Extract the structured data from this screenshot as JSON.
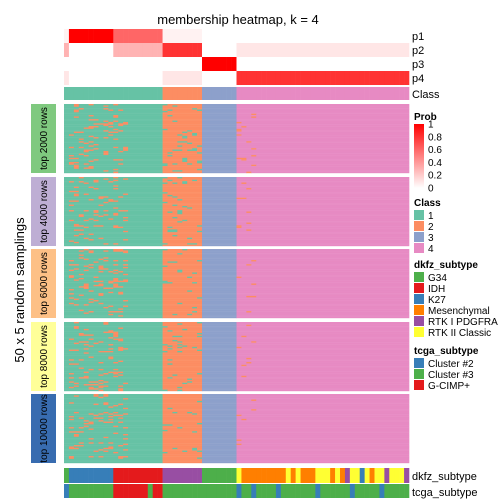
{
  "chart_data": {
    "type": "heatmap",
    "title": "membership heatmap, k = 4",
    "ylabel": "50 x 5 random samplings",
    "num_samples": 70,
    "class_boundaries": [
      0,
      7,
      14,
      21,
      28
    ],
    "membership_rows": [
      "p1",
      "p2",
      "p3",
      "p4"
    ],
    "membership_values": [
      [
        0.05,
        1,
        1,
        1,
        1,
        1,
        1,
        1,
        1,
        1,
        0.6,
        0.6,
        0.6,
        0.6,
        0.6,
        0.6,
        0.6,
        0.6,
        0.6,
        0.6,
        0.05,
        0.05,
        0.05,
        0.05,
        0.05,
        0.05,
        0.05,
        0.05,
        0,
        0,
        0,
        0,
        0,
        0,
        0,
        0,
        0,
        0,
        0,
        0,
        0,
        0,
        0,
        0,
        0,
        0,
        0,
        0,
        0,
        0,
        0,
        0,
        0,
        0,
        0,
        0,
        0,
        0,
        0,
        0,
        0,
        0,
        0,
        0,
        0,
        0,
        0,
        0,
        0,
        0
      ],
      [
        0.3,
        0,
        0,
        0,
        0,
        0,
        0,
        0,
        0,
        0,
        0.3,
        0.3,
        0.3,
        0.3,
        0.3,
        0.3,
        0.3,
        0.3,
        0.3,
        0.3,
        0.8,
        0.8,
        0.8,
        0.8,
        0.8,
        0.8,
        0.8,
        0.8,
        0,
        0,
        0,
        0,
        0,
        0,
        0,
        0.1,
        0.1,
        0.1,
        0.1,
        0.1,
        0.1,
        0.1,
        0.1,
        0.1,
        0.1,
        0.1,
        0.1,
        0.1,
        0.1,
        0.1,
        0.1,
        0.1,
        0.1,
        0.1,
        0.1,
        0.1,
        0.1,
        0.1,
        0.1,
        0.1,
        0.1,
        0.1,
        0.1,
        0.1,
        0.1,
        0.1,
        0.1,
        0.1,
        0.1,
        0.1
      ],
      [
        0,
        0,
        0,
        0,
        0,
        0,
        0,
        0,
        0,
        0,
        0,
        0,
        0,
        0,
        0,
        0,
        0,
        0,
        0,
        0,
        0,
        0,
        0,
        0,
        0,
        0,
        0,
        0,
        1,
        1,
        1,
        1,
        1,
        1,
        1,
        0,
        0,
        0,
        0,
        0,
        0,
        0,
        0,
        0,
        0,
        0,
        0,
        0,
        0,
        0,
        0,
        0,
        0,
        0,
        0,
        0,
        0,
        0,
        0,
        0,
        0,
        0,
        0,
        0,
        0,
        0,
        0,
        0,
        0,
        0
      ],
      [
        0.1,
        0,
        0,
        0,
        0,
        0,
        0,
        0,
        0,
        0,
        0,
        0,
        0,
        0,
        0,
        0,
        0,
        0,
        0,
        0,
        0.1,
        0.1,
        0.1,
        0.1,
        0.1,
        0.1,
        0.1,
        0.1,
        0,
        0,
        0,
        0,
        0,
        0,
        0,
        0.8,
        0.8,
        0.8,
        0.8,
        0.8,
        0.8,
        0.8,
        0.8,
        0.8,
        0.8,
        0.8,
        0.8,
        0.8,
        0.8,
        0.8,
        0.8,
        0.8,
        0.8,
        0.8,
        0.8,
        0.8,
        0.8,
        0.8,
        0.8,
        0.8,
        0.8,
        0.8,
        0.8,
        0.8,
        0.8,
        0.8,
        0.8,
        0.8,
        0.8,
        0.8
      ]
    ],
    "class_label": "Class",
    "sample_class": [
      1,
      1,
      1,
      1,
      1,
      1,
      1,
      1,
      1,
      1,
      1,
      1,
      1,
      1,
      1,
      1,
      1,
      1,
      1,
      1,
      2,
      2,
      2,
      2,
      2,
      2,
      2,
      2,
      3,
      3,
      3,
      3,
      3,
      3,
      3,
      4,
      4,
      4,
      4,
      4,
      4,
      4,
      4,
      4,
      4,
      4,
      4,
      4,
      4,
      4,
      4,
      4,
      4,
      4,
      4,
      4,
      4,
      4,
      4,
      4,
      4,
      4,
      4,
      4,
      4,
      4,
      4,
      4,
      4,
      4
    ],
    "row_groups": [
      {
        "label": "top 2000 rows",
        "color": "#7fc97f"
      },
      {
        "label": "top 4000 rows",
        "color": "#beaed4"
      },
      {
        "label": "top 6000 rows",
        "color": "#fdc086"
      },
      {
        "label": "top 8000 rows",
        "color": "#ffff99"
      },
      {
        "label": "top 10000 rows",
        "color": "#386cb0"
      }
    ],
    "prob_legend": {
      "title": "Prob",
      "ticks": [
        "1",
        "0.8",
        "0.6",
        "0.4",
        "0.2",
        "0"
      ]
    },
    "class_legend": {
      "title": "Class",
      "items": [
        {
          "label": "1",
          "color": "#66c2a5"
        },
        {
          "label": "2",
          "color": "#fc8d62"
        },
        {
          "label": "3",
          "color": "#8da0cb"
        },
        {
          "label": "4",
          "color": "#e78ac3"
        }
      ]
    },
    "dkfz_legend": {
      "title": "dkfz_subtype",
      "items": [
        {
          "label": "G34",
          "color": "#4daf4a"
        },
        {
          "label": "IDH",
          "color": "#e41a1c"
        },
        {
          "label": "K27",
          "color": "#377eb8"
        },
        {
          "label": "Mesenchymal",
          "color": "#ff7f00"
        },
        {
          "label": "RTK I PDGFRA",
          "color": "#984ea3"
        },
        {
          "label": "RTK II Classic",
          "color": "#ffff33"
        }
      ]
    },
    "tcga_legend": {
      "title": "tcga_subtype",
      "items": [
        {
          "label": "Cluster #2",
          "color": "#377eb8"
        },
        {
          "label": "Cluster #3",
          "color": "#4daf4a"
        },
        {
          "label": "G-CIMP+",
          "color": "#e41a1c"
        }
      ]
    },
    "bottom_labels": {
      "dkfz": "dkfz_subtype",
      "tcga": "tcga_subtype"
    },
    "dkfz_subtype": [
      "G34",
      "K27",
      "K27",
      "K27",
      "K27",
      "K27",
      "K27",
      "K27",
      "K27",
      "K27",
      "IDH",
      "IDH",
      "IDH",
      "IDH",
      "IDH",
      "IDH",
      "IDH",
      "IDH",
      "IDH",
      "IDH",
      "RTK I PDGFRA",
      "RTK I PDGFRA",
      "RTK I PDGFRA",
      "RTK I PDGFRA",
      "RTK I PDGFRA",
      "RTK I PDGFRA",
      "RTK I PDGFRA",
      "RTK I PDGFRA",
      "G34",
      "G34",
      "G34",
      "G34",
      "G34",
      "G34",
      "G34",
      "RTK II Classic",
      "Mesenchymal",
      "Mesenchymal",
      "Mesenchymal",
      "Mesenchymal",
      "Mesenchymal",
      "Mesenchymal",
      "Mesenchymal",
      "Mesenchymal",
      "Mesenchymal",
      "RTK II Classic",
      "Mesenchymal",
      "RTK II Classic",
      "Mesenchymal",
      "Mesenchymal",
      "Mesenchymal",
      "RTK II Classic",
      "RTK II Classic",
      "RTK II Classic",
      "Mesenchymal",
      "RTK II Classic",
      "Mesenchymal",
      "RTK I PDGFRA",
      "RTK II Classic",
      "RTK II Classic",
      "K27",
      "RTK II Classic",
      "Mesenchymal",
      "RTK II Classic",
      "RTK II Classic",
      "RTK I PDGFRA",
      "RTK II Classic",
      "RTK II Classic",
      "RTK II Classic",
      "RTK I PDGFRA"
    ],
    "tcga_subtype": [
      "Cluster #2",
      "Cluster #3",
      "Cluster #3",
      "Cluster #3",
      "Cluster #3",
      "Cluster #3",
      "Cluster #3",
      "Cluster #3",
      "Cluster #3",
      "Cluster #3",
      "G-CIMP+",
      "G-CIMP+",
      "G-CIMP+",
      "G-CIMP+",
      "G-CIMP+",
      "G-CIMP+",
      "G-CIMP+",
      "Cluster #3",
      "G-CIMP+",
      "G-CIMP+",
      "Cluster #3",
      "Cluster #3",
      "Cluster #3",
      "Cluster #3",
      "Cluster #3",
      "Cluster #3",
      "Cluster #3",
      "Cluster #3",
      "Cluster #3",
      "Cluster #3",
      "Cluster #3",
      "Cluster #3",
      "Cluster #3",
      "Cluster #3",
      "Cluster #3",
      "Cluster #2",
      "Cluster #3",
      "Cluster #3",
      "Cluster #2",
      "Cluster #3",
      "Cluster #3",
      "Cluster #3",
      "Cluster #3",
      "Cluster #2",
      "Cluster #3",
      "Cluster #3",
      "Cluster #3",
      "Cluster #3",
      "Cluster #3",
      "Cluster #3",
      "Cluster #3",
      "Cluster #2",
      "Cluster #3",
      "Cluster #3",
      "Cluster #3",
      "Cluster #3",
      "Cluster #3",
      "Cluster #3",
      "Cluster #2",
      "Cluster #3",
      "Cluster #3",
      "Cluster #3",
      "Cluster #3",
      "Cluster #3",
      "Cluster #2",
      "Cluster #3",
      "Cluster #3",
      "Cluster #3",
      "Cluster #3",
      "Cluster #3"
    ]
  }
}
